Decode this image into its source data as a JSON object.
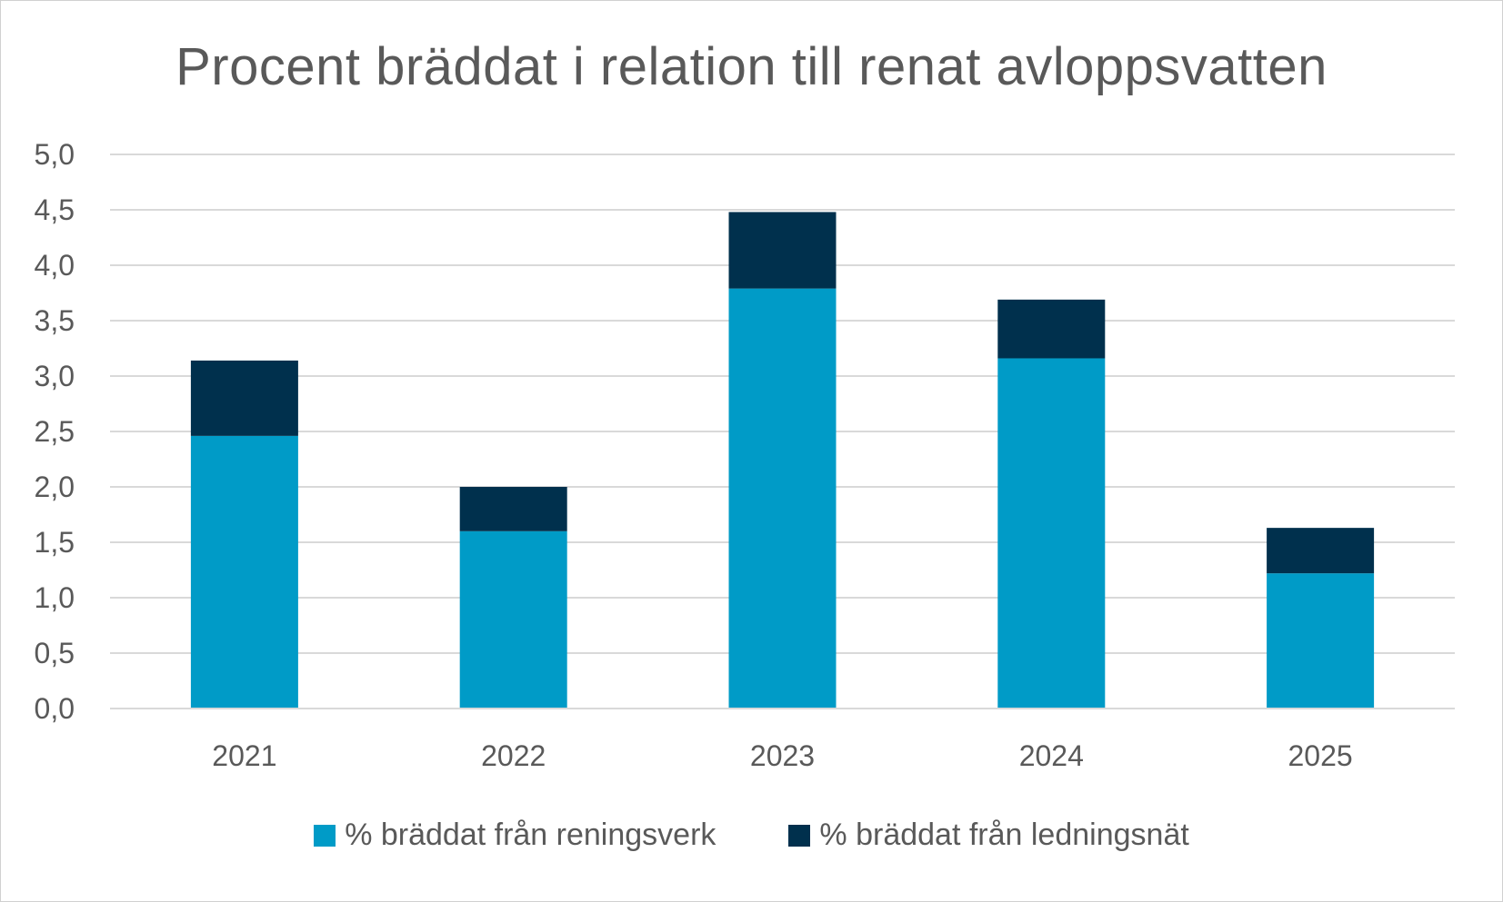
{
  "chart_data": {
    "type": "bar",
    "stacked": true,
    "title": "Procent bräddat i relation till renat avloppsvatten",
    "categories": [
      "2021",
      "2022",
      "2023",
      "2024",
      "2025"
    ],
    "series": [
      {
        "name": "% bräddat från reningsverk",
        "color": "#009BC7",
        "values": [
          2.46,
          1.6,
          3.79,
          3.16,
          1.22
        ]
      },
      {
        "name": "% bräddat från ledningsnät",
        "color": "#00304D",
        "values": [
          0.68,
          0.4,
          0.69,
          0.53,
          0.41
        ]
      }
    ],
    "ylim": [
      0,
      5
    ],
    "yticks": [
      "0,0",
      "0,5",
      "1,0",
      "1,5",
      "2,0",
      "2,5",
      "3,0",
      "3,5",
      "4,0",
      "4,5",
      "5,0"
    ],
    "grid": true,
    "legend_position": "bottom"
  }
}
